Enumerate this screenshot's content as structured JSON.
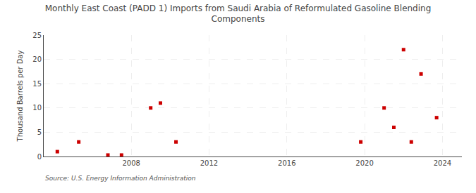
{
  "chart_data": {
    "type": "scatter",
    "title": "Monthly East Coast (PADD 1) Imports from Saudi Arabia of Reformulated Gasoline Blending\nComponents",
    "ylabel": "Thousand Barrels per Day",
    "source": "Source: U.S. Energy Information Administration",
    "x": [
      2004.2,
      2005.3,
      2006.8,
      2007.5,
      2009.0,
      2009.5,
      2010.3,
      2019.8,
      2021.0,
      2021.5,
      2022.0,
      2022.4,
      2022.9,
      2023.7
    ],
    "values": [
      1.0,
      3.0,
      0.3,
      0.3,
      10.0,
      11.0,
      3.0,
      3.0,
      10.0,
      6.0,
      22.0,
      3.0,
      17.0,
      8.0
    ],
    "color": "#cc0000",
    "marker": "square",
    "xlim": [
      2003.5,
      2025.0
    ],
    "xticks": [
      2008,
      2012,
      2016,
      2020,
      2024
    ],
    "ylim": [
      0,
      25
    ],
    "yticks": [
      0,
      5,
      10,
      15,
      20,
      25
    ],
    "grid": true
  }
}
